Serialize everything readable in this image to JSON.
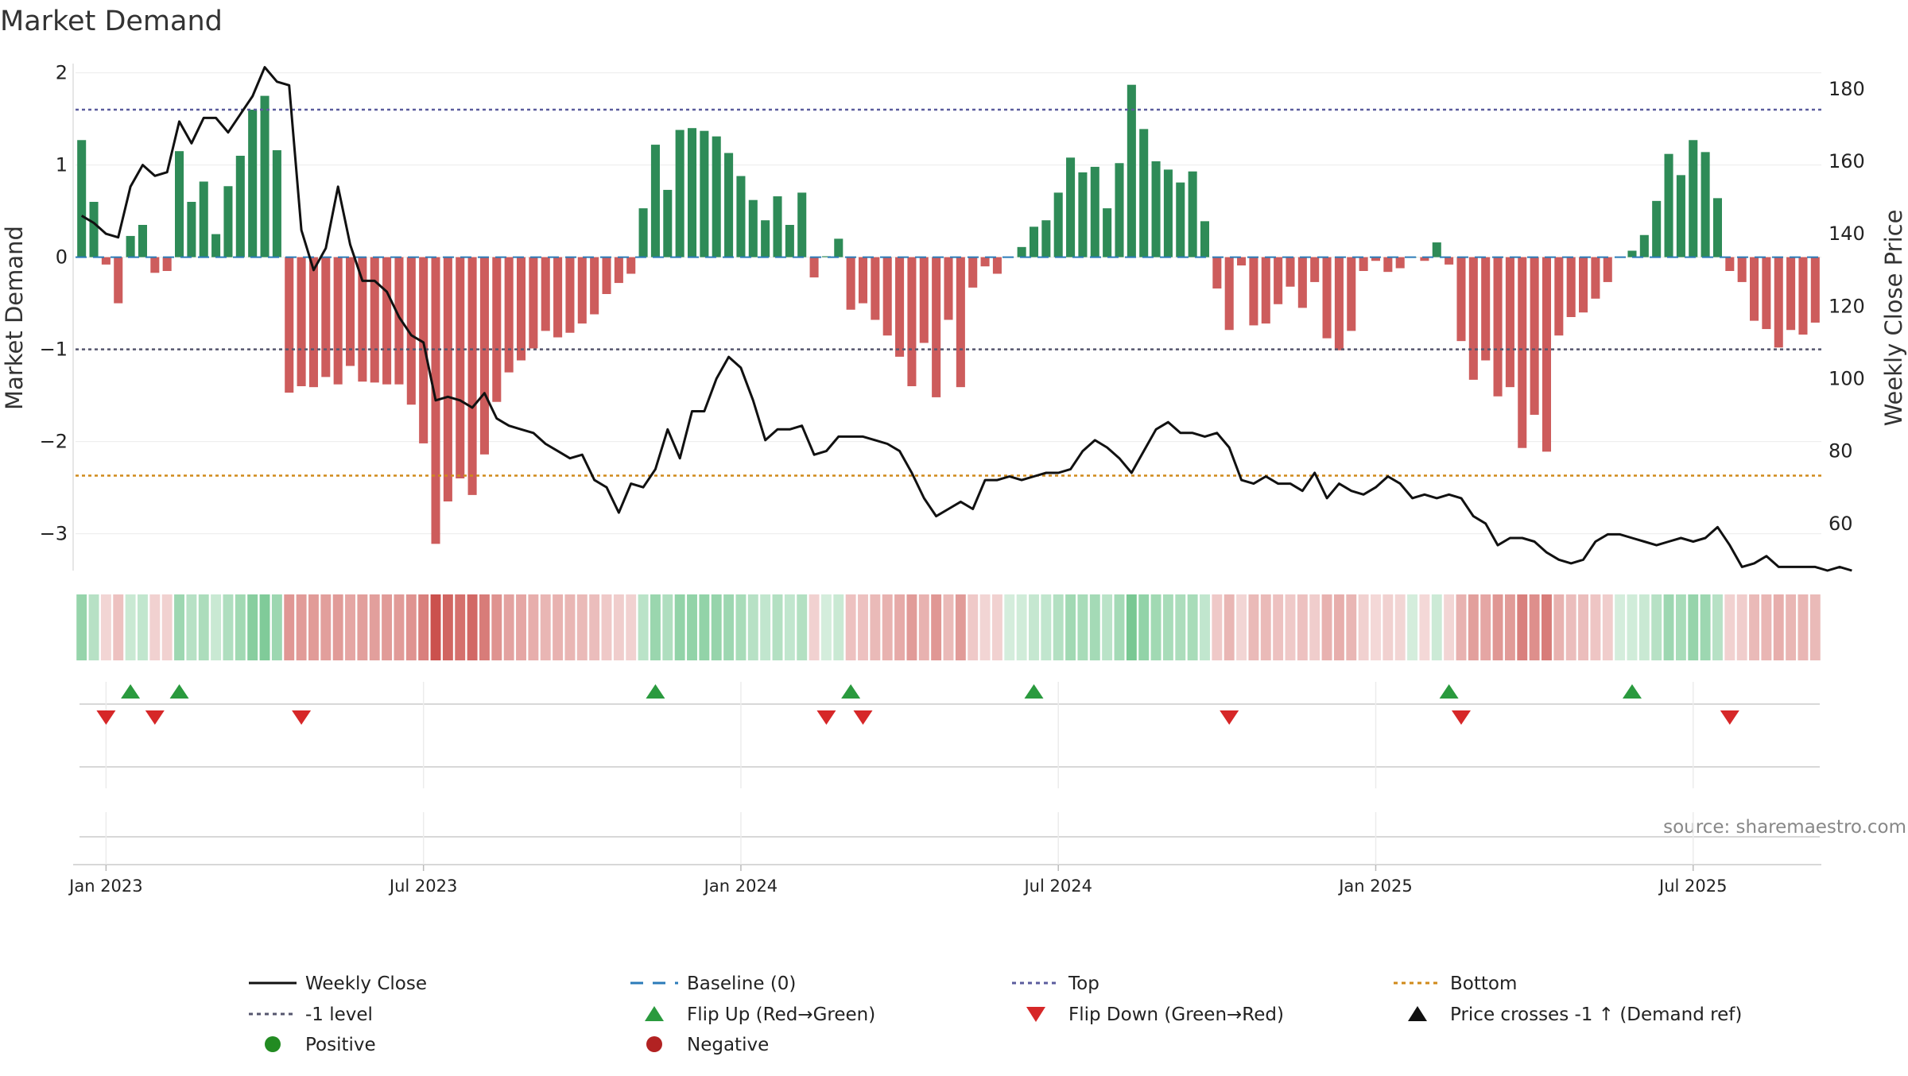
{
  "chart_data": {
    "type": "bar",
    "title": "Market Demand",
    "ylabel": "Market Demand",
    "y2label": "Weekly Close Price",
    "ylim": [
      -3.4,
      2.1
    ],
    "y2lim": [
      47,
      187
    ],
    "yticks": [
      "2",
      "1",
      "0",
      "−1",
      "−2",
      "−3"
    ],
    "ytick_values": [
      2,
      1,
      0,
      -1,
      -2,
      -3
    ],
    "y2ticks": [
      "180",
      "160",
      "140",
      "120",
      "100",
      "80",
      "60"
    ],
    "y2tick_values": [
      180,
      160,
      140,
      120,
      100,
      80,
      60
    ],
    "xticks": [
      "Jan 2023",
      "Jul 2023",
      "Jan 2024",
      "Jul 2024",
      "Jan 2025",
      "Jul 2025"
    ],
    "xtick_weeks": [
      2.5,
      28.5,
      54.5,
      80.5,
      106.5,
      132.5
    ],
    "reference_lines": {
      "top": 1.6,
      "minus_one": -1.0,
      "bottom": -2.37,
      "baseline": 0
    },
    "demand": [
      1.27,
      0.6,
      -0.08,
      -0.5,
      0.23,
      0.35,
      -0.17,
      -0.15,
      1.15,
      0.6,
      0.82,
      0.25,
      0.77,
      1.1,
      1.6,
      1.75,
      1.16,
      -1.47,
      -1.4,
      -1.41,
      -1.3,
      -1.38,
      -1.18,
      -1.35,
      -1.36,
      -1.38,
      -1.38,
      -1.6,
      -2.02,
      -3.11,
      -2.65,
      -2.4,
      -2.58,
      -2.14,
      -1.57,
      -1.25,
      -1.12,
      -0.99,
      -0.8,
      -0.87,
      -0.82,
      -0.72,
      -0.62,
      -0.4,
      -0.28,
      -0.18,
      0.53,
      1.22,
      0.73,
      1.38,
      1.4,
      1.37,
      1.31,
      1.13,
      0.88,
      0.62,
      0.4,
      0.66,
      0.35,
      0.7,
      -0.22,
      0.01,
      0.2,
      -0.57,
      -0.5,
      -0.68,
      -0.85,
      -1.08,
      -1.4,
      -0.93,
      -1.52,
      -0.68,
      -1.41,
      -0.33,
      -0.1,
      -0.18,
      0.0,
      0.11,
      0.33,
      0.4,
      0.7,
      1.08,
      0.92,
      0.98,
      0.53,
      1.02,
      1.87,
      1.39,
      1.04,
      0.95,
      0.81,
      0.93,
      0.39,
      -0.34,
      -0.79,
      -0.09,
      -0.74,
      -0.72,
      -0.51,
      -0.32,
      -0.55,
      -0.27,
      -0.88,
      -1.01,
      -0.8,
      -0.15,
      -0.04,
      -0.16,
      -0.12,
      0.0,
      -0.04,
      0.16,
      -0.08,
      -0.91,
      -1.33,
      -1.12,
      -1.51,
      -1.41,
      -2.07,
      -1.71,
      -2.11,
      -0.85,
      -0.65,
      -0.6,
      -0.45,
      -0.27,
      0.0,
      0.07,
      0.24,
      0.61,
      1.12,
      0.89,
      1.27,
      1.14,
      0.64,
      -0.15,
      -0.27,
      -0.69,
      -0.78,
      -0.98,
      -0.79,
      -0.84,
      -0.71
    ],
    "price": [
      145,
      143,
      140,
      139,
      153,
      159,
      156,
      157,
      171,
      165,
      172,
      172,
      168,
      173,
      178,
      186,
      182,
      181,
      141,
      130,
      136,
      153,
      137,
      127,
      127,
      124,
      117,
      112,
      110,
      94,
      95,
      94,
      92,
      96,
      89,
      87,
      86,
      85,
      82,
      80,
      78,
      79,
      72,
      70,
      63,
      71,
      70,
      75,
      86,
      78,
      91,
      91,
      100,
      106,
      103,
      94,
      83,
      86,
      86,
      87,
      79,
      80,
      84,
      84,
      84,
      83,
      82,
      80,
      74,
      67,
      62,
      64,
      66,
      64,
      72,
      72,
      73,
      72,
      73,
      74,
      74,
      75,
      80,
      83,
      81,
      78,
      74,
      80,
      86,
      88,
      85,
      85,
      84,
      85,
      81,
      72,
      71,
      73,
      71,
      71,
      69,
      74,
      67,
      71,
      69,
      68,
      70,
      73,
      71,
      67,
      68,
      67,
      68,
      67,
      62,
      60,
      54,
      56,
      56,
      55,
      52,
      50,
      49,
      50,
      55,
      57,
      57,
      56,
      55,
      54,
      55,
      56,
      55,
      56,
      59,
      54,
      48,
      49,
      51,
      48,
      48,
      48,
      48,
      47,
      48,
      47
    ],
    "flip_up_weeks": [
      4,
      8,
      47,
      63,
      78,
      112,
      127
    ],
    "flip_down_weeks": [
      2,
      6,
      18,
      61,
      64,
      94,
      113,
      135
    ],
    "source": "source: sharemaestro.com",
    "legend": [
      {
        "label": "Weekly Close",
        "symbol": "line",
        "color": "#111111"
      },
      {
        "label": "Baseline (0)",
        "symbol": "dash",
        "color": "#2b7bb9"
      },
      {
        "label": "Top",
        "symbol": "dot",
        "color": "#5b5c9e"
      },
      {
        "label": "Bottom",
        "symbol": "dot",
        "color": "#d08a1a"
      },
      {
        "label": "-1 level",
        "symbol": "dot",
        "color": "#55566e"
      },
      {
        "label": "Flip Up (Red→Green)",
        "symbol": "tri-up",
        "color": "#2a9a3e"
      },
      {
        "label": "Flip Down (Green→Red)",
        "symbol": "tri-down",
        "color": "#d62728"
      },
      {
        "label": "Price crosses -1 ↑ (Demand ref)",
        "symbol": "tri-up",
        "color": "#111111"
      },
      {
        "label": "Positive",
        "symbol": "circle",
        "color": "#228b22"
      },
      {
        "label": "Negative",
        "symbol": "circle",
        "color": "#b22222"
      }
    ],
    "colors": {
      "positive": "#2e8b57",
      "negative": "#cd5c5c",
      "price": "#111111",
      "baseline": "#2b7bb9",
      "top": "#5b5c9e",
      "bottom": "#d08a1a",
      "minus_one": "#55566e"
    }
  }
}
